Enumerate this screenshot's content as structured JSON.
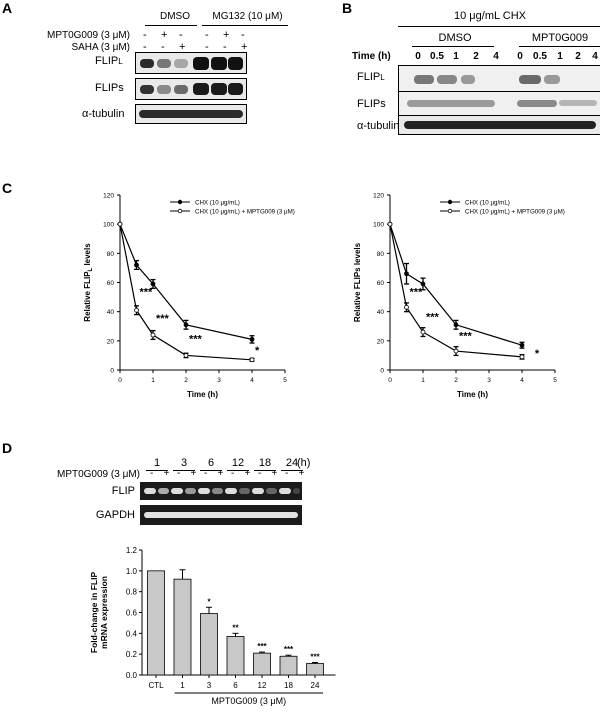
{
  "panel_a": {
    "label": "A",
    "group_dmso": "DMSO",
    "group_mg132": "MG132 (10 μM)",
    "row_mpt": "MPT0G009 (3 μM)",
    "row_saha": "SAHA (3 μM)",
    "mpt_signs": [
      "-",
      "+",
      "-",
      "-",
      "+",
      "-"
    ],
    "saha_signs": [
      "-",
      "-",
      "+",
      "-",
      "-",
      "+"
    ],
    "blot_flipl": "FLIP",
    "blot_flipl_sub": "L",
    "blot_flips": "FLIPs",
    "blot_tubulin": "α-tubulin"
  },
  "panel_b": {
    "label": "B",
    "header": "10 μg/mL CHX",
    "group_dmso": "DMSO",
    "group_mpt": "MPT0G009",
    "time_label": "Time (h)",
    "times": [
      "0",
      "0.5",
      "1",
      "2",
      "4",
      "0",
      "0.5",
      "1",
      "2",
      "4"
    ],
    "blot_flipl": "FLIP",
    "blot_flipl_sub": "L",
    "blot_flips": "FLIPs",
    "blot_tubulin": "α-tubulin"
  },
  "panel_c": {
    "label": "C"
  },
  "panel_d": {
    "label": "D",
    "times": [
      "1",
      "3",
      "6",
      "12",
      "18",
      "24"
    ],
    "time_unit": "(h)",
    "row_mpt": "MPT0G009 (3 μM)",
    "signs": [
      "-",
      "+",
      "-",
      "+",
      "-",
      "+",
      "-",
      "+",
      "-",
      "+",
      "-",
      "+"
    ],
    "gel_flip": "FLIP",
    "gel_gapdh": "GAPDH"
  },
  "chart_data": [
    {
      "type": "line",
      "ylabel": "Relative FLIP",
      "ylabel_sub": "L",
      "ylabel_suffix": " levels",
      "xlabel": "Time (h)",
      "xlim": [
        0,
        5
      ],
      "ylim": [
        0,
        120
      ],
      "x_ticks": [
        "0",
        "1",
        "2",
        "3",
        "4",
        "5"
      ],
      "y_ticks": [
        "0",
        "20",
        "40",
        "60",
        "80",
        "100",
        "120"
      ],
      "series": [
        {
          "name": "CHX (10 μg/mL)",
          "marker": "filled",
          "x": [
            0,
            0.5,
            1,
            2,
            4
          ],
          "values": [
            100,
            72,
            59,
            31,
            21
          ],
          "errors": [
            0,
            3,
            3,
            3,
            2.5
          ]
        },
        {
          "name": "CHX (10 μg/mL) + MPTG009 (3 μM)",
          "marker": "open",
          "x": [
            0,
            0.5,
            1,
            2,
            4
          ],
          "values": [
            100,
            41,
            24,
            10,
            7
          ],
          "errors": [
            0,
            3,
            3,
            1.5,
            1
          ]
        }
      ],
      "annotations": [
        {
          "x": 0.5,
          "y": 51,
          "text": "***"
        },
        {
          "x": 1,
          "y": 33,
          "text": "***"
        },
        {
          "x": 2,
          "y": 19,
          "text": "***"
        },
        {
          "x": 4,
          "y": 11,
          "text": "*"
        }
      ]
    },
    {
      "type": "line",
      "ylabel": "Relative FLIPs levels",
      "ylabel_sub": "",
      "ylabel_suffix": "",
      "xlabel": "Time (h)",
      "xlim": [
        0,
        5
      ],
      "ylim": [
        0,
        120
      ],
      "x_ticks": [
        "0",
        "1",
        "2",
        "3",
        "4",
        "5"
      ],
      "y_ticks": [
        "0",
        "20",
        "40",
        "60",
        "80",
        "100",
        "120"
      ],
      "series": [
        {
          "name": "CHX (10 μg/mL)",
          "marker": "filled",
          "x": [
            0,
            0.5,
            1,
            2,
            4
          ],
          "values": [
            100,
            66,
            59,
            31,
            17
          ],
          "errors": [
            0,
            7,
            4,
            3,
            2
          ]
        },
        {
          "name": "CHX (10 μg/mL) + MPTG009 (3 μM)",
          "marker": "open",
          "x": [
            0,
            0.5,
            1,
            2,
            4
          ],
          "values": [
            100,
            43,
            26,
            13,
            9
          ],
          "errors": [
            0,
            3,
            3,
            3,
            1.5
          ]
        }
      ],
      "annotations": [
        {
          "x": 0.5,
          "y": 51,
          "text": "***"
        },
        {
          "x": 1,
          "y": 34,
          "text": "***"
        },
        {
          "x": 2,
          "y": 21,
          "text": "***"
        },
        {
          "x": 4.3,
          "y": 9,
          "text": "*"
        }
      ]
    },
    {
      "type": "bar",
      "ylabel": "Fold-change in FLIP mRNA expression",
      "xlabel": "MPT0G009 (3 μM)",
      "x_unit": "(h)",
      "categories": [
        "CTL",
        "1",
        "3",
        "6",
        "12",
        "18",
        "24"
      ],
      "values": [
        1.0,
        0.92,
        0.59,
        0.37,
        0.21,
        0.18,
        0.11
      ],
      "errors": [
        0,
        0.09,
        0.06,
        0.03,
        0.01,
        0.01,
        0.01
      ],
      "significance": [
        "",
        "",
        "*",
        "**",
        "***",
        "***",
        "***"
      ],
      "ylim": [
        0,
        1.2
      ],
      "y_ticks": [
        "0.0",
        "0.2",
        "0.4",
        "0.6",
        "0.8",
        "1.0",
        "1.2"
      ]
    }
  ]
}
